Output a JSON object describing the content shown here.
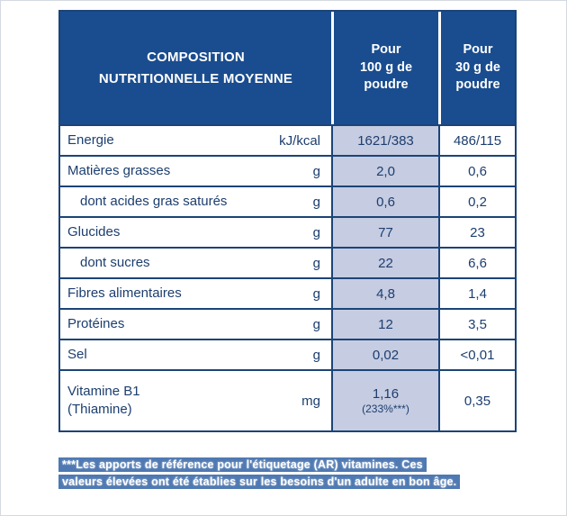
{
  "colors": {
    "navy_border": "#1c4477",
    "header_background": "#1a4d8f",
    "per100_column_background": "#c6cce1",
    "footnote_highlight": "#4f79b2",
    "text": "#1c3e6f"
  },
  "table": {
    "header": {
      "composition": "COMPOSITION\nNUTRITIONNELLE MOYENNE",
      "per100": "Pour\n100 g de\npoudre",
      "per30": "Pour\n30 g de\npoudre"
    },
    "rows": [
      {
        "label": "Energie",
        "unit": "kJ/kcal",
        "per100": "1621/383",
        "per30": "486/115"
      },
      {
        "label": "Matières grasses",
        "unit": "g",
        "per100": "2,0",
        "per30": "0,6"
      },
      {
        "label": "dont acides gras saturés",
        "unit": "g",
        "per100": "0,6",
        "per30": "0,2"
      },
      {
        "label": "Glucides",
        "unit": "g",
        "per100": "77",
        "per30": "23"
      },
      {
        "label": "dont sucres",
        "unit": "g",
        "per100": "22",
        "per30": "6,6"
      },
      {
        "label": "Fibres alimentaires",
        "unit": "g",
        "per100": "4,8",
        "per30": "1,4"
      },
      {
        "label": "Protéines",
        "unit": "g",
        "per100": "12",
        "per30": "3,5"
      },
      {
        "label": "Sel",
        "unit": "g",
        "per100": "0,02",
        "per30": "<0,01"
      },
      {
        "label": "Vitamine B1\n(Thiamine)",
        "unit": "mg",
        "per100": "1,16",
        "per100_sub": "(233%***)",
        "per30": "0,35"
      }
    ]
  },
  "footnote": {
    "line1": "***Les apports de référence pour l'étiquetage (AR) vitamines. Ces",
    "line2": "valeurs élevées ont été établies sur les besoins d'un adulte en bon âge."
  }
}
